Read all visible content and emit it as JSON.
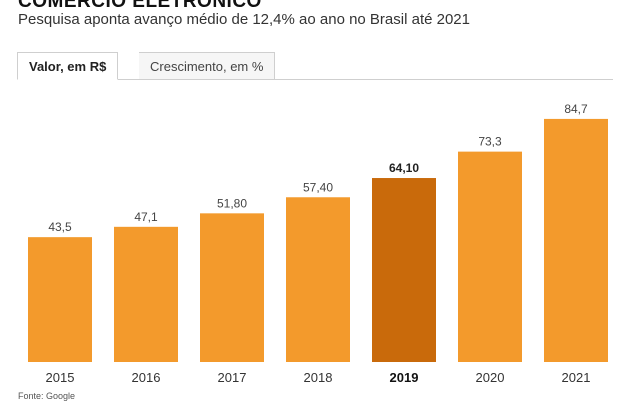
{
  "header": {
    "title": "COMERCIO ELETRONICO",
    "subtitle": "Pesquisa aponta avanço médio de 12,4% ao ano no Brasil até 2021"
  },
  "tabs": [
    {
      "label": "Valor, em R$",
      "active": true
    },
    {
      "label": "Crescimento, em %",
      "active": false
    }
  ],
  "source": "Fonte: Google",
  "colors": {
    "bar": "#f39a2c",
    "highlight": "#c96a0b"
  },
  "chart_data": {
    "type": "bar",
    "categories": [
      "2015",
      "2016",
      "2017",
      "2018",
      "2019",
      "2020",
      "2021"
    ],
    "values": [
      43.5,
      47.1,
      51.8,
      57.4,
      64.1,
      73.3,
      84.7
    ],
    "value_labels": [
      "43,5",
      "47,1",
      "51,80",
      "57,40",
      "64,10",
      "73,3",
      "84,7"
    ],
    "highlight_index": 4,
    "ylim": [
      0,
      90
    ],
    "grid": false,
    "title": "",
    "xlabel": "",
    "ylabel": ""
  }
}
